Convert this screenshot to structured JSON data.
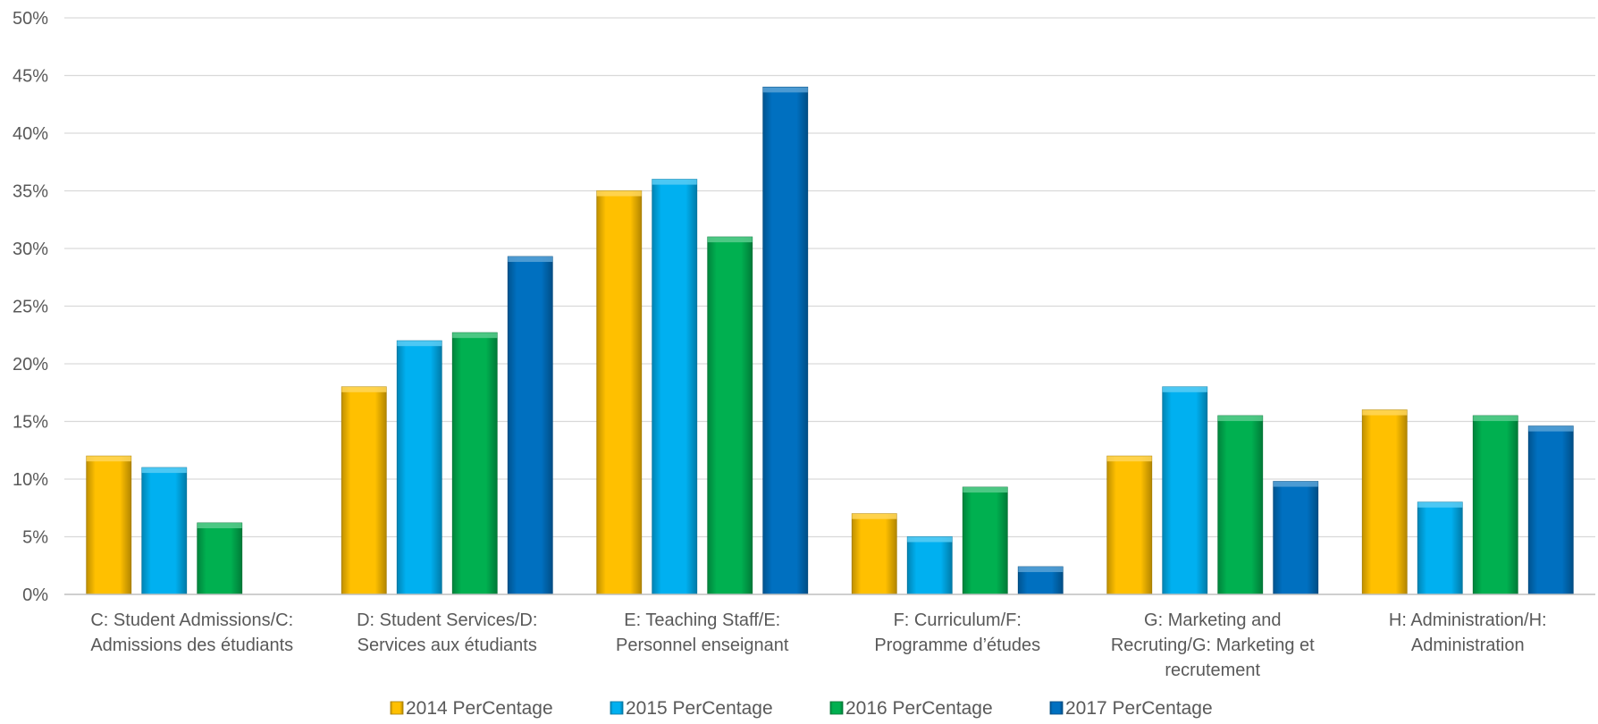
{
  "chart_data": {
    "type": "bar",
    "categories": [
      [
        "C: Student Admissions/C:",
        "Admissions des étudiants"
      ],
      [
        "D: Student Services/D:",
        "Services aux étudiants"
      ],
      [
        "E: Teaching Staff/E:",
        "Personnel enseignant"
      ],
      [
        "F: Curriculum/F:",
        "Programme d’études"
      ],
      [
        "G: Marketing and",
        "Recruting/G: Marketing et",
        "recrutement"
      ],
      [
        "H: Administration/H:",
        "Administration"
      ]
    ],
    "series": [
      {
        "name": "2014 PerCentage",
        "color": "#FFC000",
        "values": [
          12,
          18,
          35,
          7,
          12,
          16
        ]
      },
      {
        "name": "2015 PerCentage",
        "color": "#00B0F0",
        "values": [
          11,
          22,
          36,
          5,
          18,
          8
        ]
      },
      {
        "name": "2016 PerCentage",
        "color": "#00B050",
        "values": [
          6.2,
          22.7,
          31,
          9.3,
          15.5,
          15.5
        ]
      },
      {
        "name": "2017 PerCentage",
        "color": "#0070C0",
        "values": [
          0,
          29.3,
          44,
          2.4,
          9.8,
          14.6
        ]
      }
    ],
    "ylim": [
      0,
      50
    ],
    "ytick_step": 5,
    "ytick_suffix": "%",
    "grid": true,
    "legend_position": "bottom"
  }
}
